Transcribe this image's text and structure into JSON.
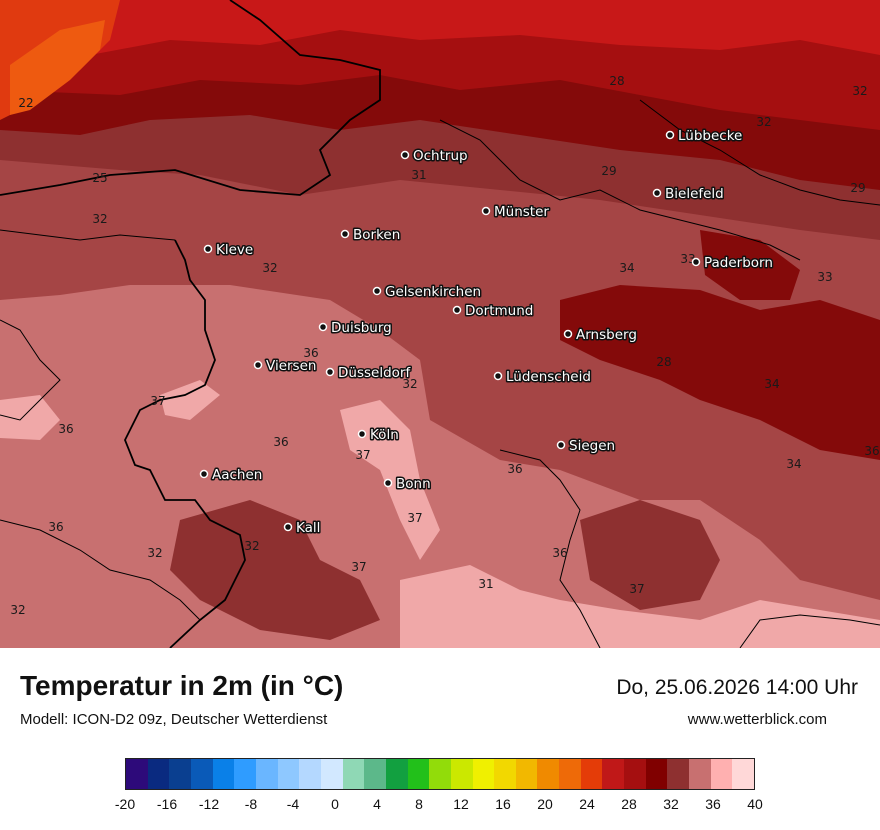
{
  "header": {
    "title": "Temperatur in 2m (in °C)",
    "model": "Modell: ICON-D2 09z, Deutscher Wetterdienst",
    "datetime": "Do, 25.06.2026 14:00 Uhr",
    "website": "www.wetterblick.com"
  },
  "colors": {
    "t22": "#ee5a10",
    "t24": "#e03a10",
    "t26": "#c81818",
    "t28": "#a50f10",
    "t30": "#840a0a",
    "t32": "#8e3030",
    "t34": "#a54545",
    "t36": "#c87070",
    "t37": "#f0a8a8",
    "t38": "#ffd0d0",
    "border": "#000000"
  },
  "cities": [
    {
      "name": "Ochtrup"
    },
    {
      "name": "Lübbecke"
    },
    {
      "name": "Bielefeld"
    },
    {
      "name": "Münster"
    },
    {
      "name": "Kleve"
    },
    {
      "name": "Borken"
    },
    {
      "name": "Paderborn"
    },
    {
      "name": "Gelsenkirchen"
    },
    {
      "name": "Dortmund"
    },
    {
      "name": "Duisburg"
    },
    {
      "name": "Arnsberg"
    },
    {
      "name": "Viersen"
    },
    {
      "name": "Düsseldorf"
    },
    {
      "name": "Lüdenscheid"
    },
    {
      "name": "Köln"
    },
    {
      "name": "Siegen"
    },
    {
      "name": "Aachen"
    },
    {
      "name": "Bonn"
    },
    {
      "name": "Kall"
    }
  ],
  "isotherm_labels": [
    "22",
    "28",
    "32",
    "32",
    "29",
    "31",
    "25",
    "29",
    "32",
    "32",
    "34",
    "33",
    "33",
    "36",
    "32",
    "28",
    "34",
    "37",
    "36",
    "36",
    "37",
    "36",
    "34",
    "34",
    "36",
    "37",
    "36",
    "32",
    "36",
    "32",
    "37",
    "31",
    "37",
    "32"
  ],
  "legend": {
    "colors": [
      "#2d0a7a",
      "#0a2a80",
      "#0a3f90",
      "#0a5ab8",
      "#0a80e8",
      "#2f9cff",
      "#6ab6ff",
      "#8ec8ff",
      "#b4d8ff",
      "#d2e8ff",
      "#8fd8b5",
      "#5cb88a",
      "#12a040",
      "#22c01a",
      "#92dc0a",
      "#cbe800",
      "#f0f000",
      "#f2d800",
      "#f2b800",
      "#f08a00",
      "#ee6a08",
      "#e43c08",
      "#c01818",
      "#a50f10",
      "#800000",
      "#8e3030",
      "#c87070",
      "#ffb0b0",
      "#ffd8d8"
    ],
    "ticks": [
      "-20",
      "-16",
      "-12",
      "-8",
      "-4",
      "0",
      "4",
      "8",
      "12",
      "16",
      "20",
      "24",
      "28",
      "32",
      "36",
      "40"
    ]
  }
}
